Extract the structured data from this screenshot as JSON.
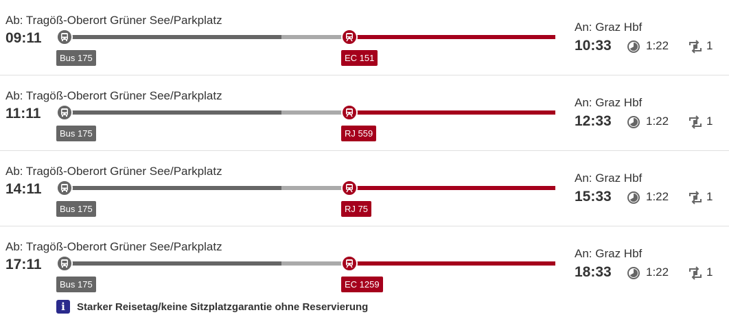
{
  "connections": [
    {
      "from": "Ab: Tragöß-Oberort Grüner See/Parkplatz",
      "departure": "09:11",
      "bus": "Bus 175",
      "train": "EC 151",
      "to": "An: Graz Hbf",
      "arrival": "10:33",
      "duration": "1:22",
      "changes": "1"
    },
    {
      "from": "Ab: Tragöß-Oberort Grüner See/Parkplatz",
      "departure": "11:11",
      "bus": "Bus 175",
      "train": "RJ 559",
      "to": "An: Graz Hbf",
      "arrival": "12:33",
      "duration": "1:22",
      "changes": "1"
    },
    {
      "from": "Ab: Tragöß-Oberort Grüner See/Parkplatz",
      "departure": "14:11",
      "bus": "Bus 175",
      "train": "RJ 75",
      "to": "An: Graz Hbf",
      "arrival": "15:33",
      "duration": "1:22",
      "changes": "1"
    },
    {
      "from": "Ab: Tragöß-Oberort Grüner See/Parkplatz",
      "departure": "17:11",
      "bus": "Bus 175",
      "train": "EC 1259",
      "to": "An: Graz Hbf",
      "arrival": "18:33",
      "duration": "1:22",
      "changes": "1"
    }
  ],
  "notice": {
    "text": "Starker Reisetag/keine Sitzplatzgarantie ohne Reservierung",
    "icon": "info-icon"
  },
  "colors": {
    "bus": "#666666",
    "walk": "#aaaaaa",
    "train": "#a5001c",
    "info": "#2a2a8c"
  },
  "icons": {
    "bus": "bus-icon",
    "train": "train-icon",
    "duration": "clock-icon",
    "changes": "transfer-icon"
  }
}
